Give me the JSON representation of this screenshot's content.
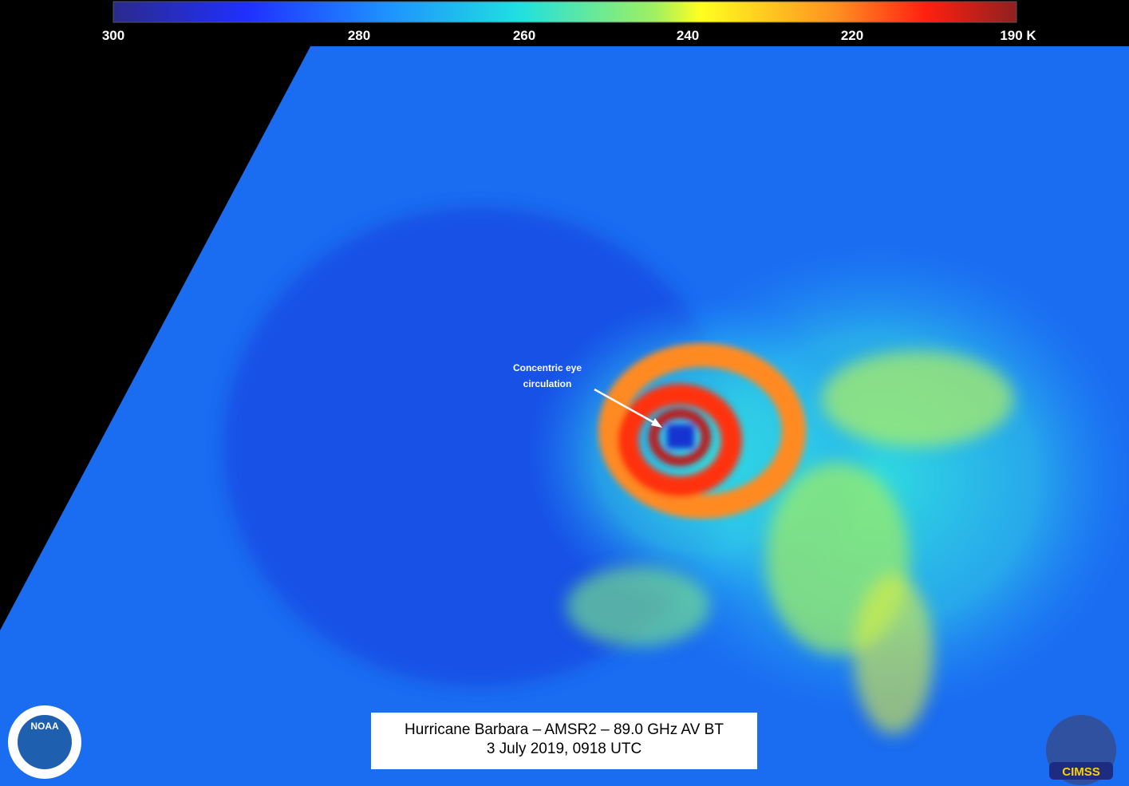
{
  "colorbar": {
    "labels": [
      "300",
      "280",
      "260",
      "240",
      "220",
      "190 K"
    ]
  },
  "annotation": {
    "lines": [
      "Concentric eye",
      "circulation"
    ]
  },
  "title": {
    "lines": [
      "Hurricane Barbara – AMSR2 – 89.0 GHz AV BT",
      "3 July 2019, 0918 UTC"
    ]
  },
  "logos": {
    "left": "NOAA",
    "right": "CIMSS"
  }
}
